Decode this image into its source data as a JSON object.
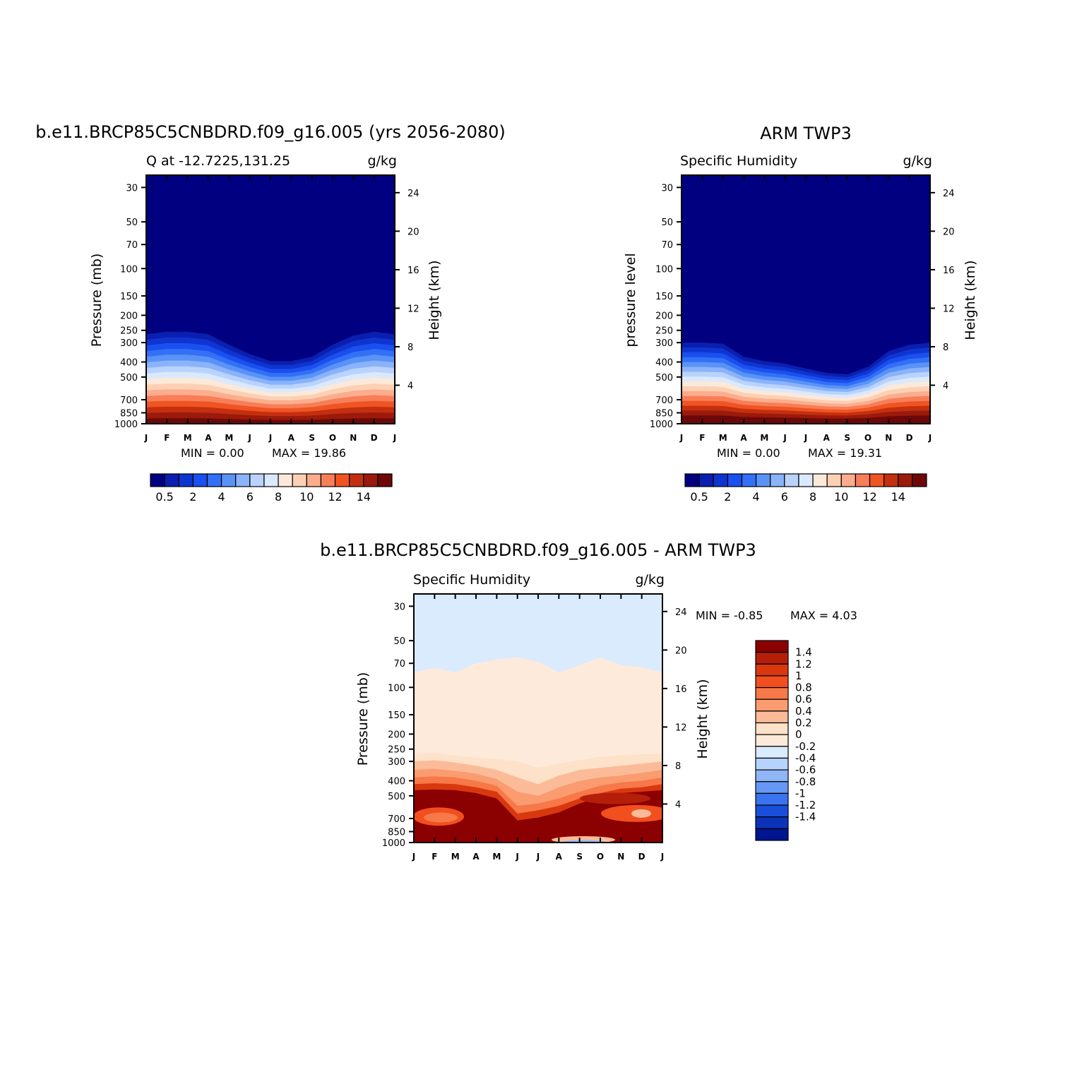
{
  "chart_data": [
    {
      "type": "heatmap",
      "title": "b.e11.BRCP85C5CNBDRD.f09_g16.005 (yrs 2056-2080)",
      "left_subtitle": "Q at -12.7225,131.25",
      "right_subtitle": "g/kg",
      "ylabel": "Pressure (mb)",
      "ylabel_right": "Height (km)",
      "x_ticks": [
        "J",
        "F",
        "M",
        "A",
        "M",
        "J",
        "J",
        "A",
        "S",
        "O",
        "N",
        "D",
        "J"
      ],
      "y_ticks": [
        "30",
        "50",
        "70",
        "100",
        "150",
        "200",
        "250",
        "300",
        "400",
        "500",
        "700",
        "850",
        "1000"
      ],
      "y_ticks_right": [
        "24",
        "20",
        "16",
        "12",
        "8",
        "4"
      ],
      "min_text": "MIN =    0.00",
      "max_text": "MAX =   19.86",
      "colorbar_labels": [
        "0.5",
        "2",
        "4",
        "6",
        "8",
        "10",
        "12",
        "14"
      ],
      "colors": [
        "#000080",
        "#0a1fb0",
        "#0f35d0",
        "#1a4ff0",
        "#3370f5",
        "#5a93f7",
        "#8ab3fa",
        "#bad3fc",
        "#dbe9fd",
        "#fde9d8",
        "#fcd0b4",
        "#fcad8d",
        "#f77e58",
        "#f05422",
        "#c42f0f",
        "#9a1a0c",
        "#6e0808"
      ],
      "contour_depth_p": [
        265,
        255,
        255,
        265,
        310,
        355,
        395,
        395,
        370,
        310,
        270,
        255,
        265
      ],
      "contour_spacing": 0.066
    },
    {
      "type": "heatmap",
      "title": "ARM TWP3",
      "left_subtitle": "Specific Humidity",
      "right_subtitle": "g/kg",
      "ylabel": "pressure level",
      "ylabel_right": "Height (km)",
      "x_ticks": [
        "J",
        "F",
        "M",
        "A",
        "M",
        "J",
        "J",
        "A",
        "S",
        "O",
        "N",
        "D",
        "J"
      ],
      "y_ticks": [
        "30",
        "50",
        "70",
        "100",
        "150",
        "200",
        "250",
        "300",
        "400",
        "500",
        "700",
        "850",
        "1000"
      ],
      "y_ticks_right": [
        "24",
        "20",
        "16",
        "12",
        "8",
        "4"
      ],
      "min_text": "MIN =    0.00",
      "max_text": "MAX =   19.31",
      "colorbar_labels": [
        "0.5",
        "2",
        "4",
        "6",
        "8",
        "10",
        "12",
        "14"
      ],
      "colors": [
        "#000080",
        "#0a1fb0",
        "#0f35d0",
        "#1a4ff0",
        "#3370f5",
        "#5a93f7",
        "#8ab3fa",
        "#bad3fc",
        "#dbe9fd",
        "#fde9d8",
        "#fcd0b4",
        "#fcad8d",
        "#f77e58",
        "#f05422",
        "#c42f0f",
        "#9a1a0c",
        "#6e0808"
      ],
      "contour_depth_p": [
        300,
        300,
        305,
        370,
        395,
        410,
        440,
        470,
        480,
        430,
        340,
        310,
        300
      ],
      "contour_spacing": 0.063
    },
    {
      "type": "heatmap",
      "title": "b.e11.BRCP85C5CNBDRD.f09_g16.005 - ARM TWP3",
      "left_subtitle": "Specific Humidity",
      "right_subtitle": "g/kg",
      "ylabel": "Pressure (mb)",
      "ylabel_right": "Height (km)",
      "x_ticks": [
        "J",
        "F",
        "M",
        "A",
        "M",
        "J",
        "J",
        "A",
        "S",
        "O",
        "N",
        "D",
        "J"
      ],
      "y_ticks": [
        "30",
        "50",
        "70",
        "100",
        "150",
        "200",
        "250",
        "300",
        "400",
        "500",
        "700",
        "850",
        "1000"
      ],
      "y_ticks_right": [
        "24",
        "20",
        "16",
        "12",
        "8",
        "4"
      ],
      "min_text": "MIN =   -0.85",
      "max_text": "MAX =    4.03",
      "colorbar_labels": [
        "1.4",
        "1.2",
        "1",
        "0.8",
        "0.6",
        "0.4",
        "0.2",
        "0",
        "-0.2",
        "-0.4",
        "-0.6",
        "-0.8",
        "-1",
        "-1.2",
        "-1.4"
      ],
      "colors_top_to_bottom": [
        "#8b0000",
        "#b51f0a",
        "#d9380f",
        "#f24f1e",
        "#f77848",
        "#fa9c70",
        "#fcbb98",
        "#fde1c8",
        "#fdeadb",
        "#d9ebfd",
        "#b5d3fb",
        "#8fb7f8",
        "#6598f5",
        "#3a73ef",
        "#1a4fdb",
        "#0a33b8",
        "#00158f"
      ],
      "boundaries": {
        "zero_top_p": [
          80,
          75,
          80,
          70,
          66,
          64,
          68,
          80,
          72,
          64,
          72,
          74,
          80
        ],
        "d02_p": [
          270,
          265,
          275,
          285,
          290,
          300,
          330,
          310,
          295,
          280,
          275,
          270,
          270
        ],
        "d04_p": [
          300,
          295,
          305,
          320,
          340,
          380,
          420,
          370,
          340,
          330,
          320,
          310,
          300
        ],
        "d06_p": [
          340,
          335,
          345,
          360,
          390,
          470,
          500,
          440,
          400,
          380,
          370,
          355,
          340
        ],
        "d08_p": [
          380,
          375,
          380,
          400,
          430,
          580,
          560,
          520,
          470,
          430,
          410,
          400,
          380
        ],
        "d10_p": [
          420,
          415,
          420,
          440,
          470,
          650,
          620,
          580,
          520,
          480,
          450,
          440,
          420
        ],
        "d14_p": [
          460,
          455,
          460,
          480,
          520,
          720,
          690,
          640,
          560,
          510,
          480,
          470,
          460
        ]
      }
    }
  ]
}
